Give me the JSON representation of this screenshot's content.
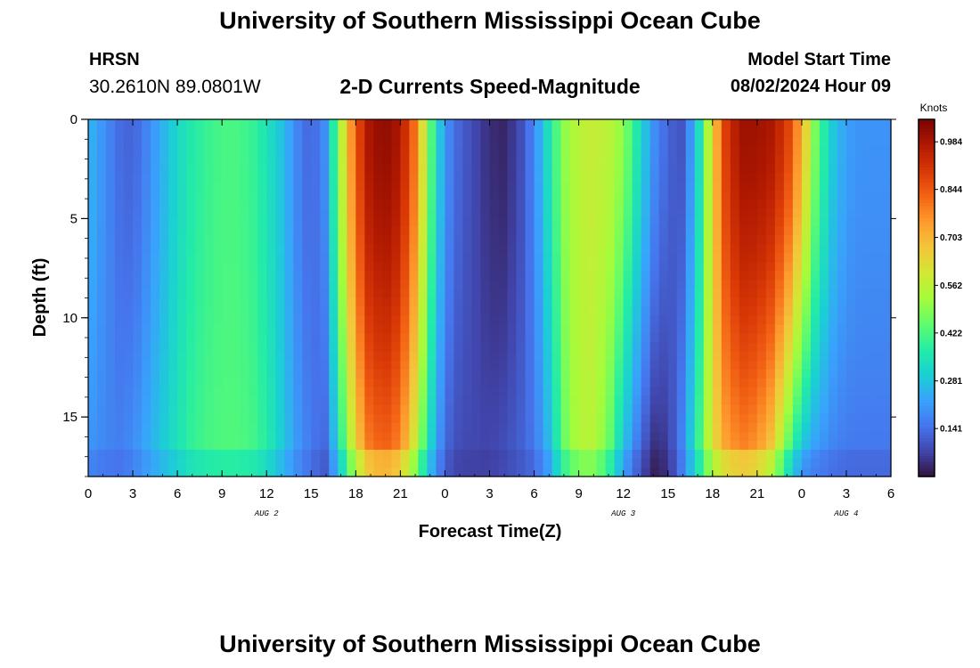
{
  "header": {
    "title": "University of Southern Mississippi Ocean Cube",
    "station": "HRSN",
    "coordinates": "30.2610N  89.0801W",
    "subtitle": "2-D Currents Speed-Magnitude",
    "model_start_label": "Model Start Time",
    "model_start_value": "08/02/2024 Hour 09"
  },
  "footer": {
    "title": "University of Southern Mississippi Ocean Cube"
  },
  "chart_data": {
    "type": "heatmap",
    "title": "2-D Currents Speed-Magnitude",
    "xlabel": "Forecast Time(Z)",
    "ylabel": "Depth (ft)",
    "x_units": "forecast hour offset from 00Z Aug 2",
    "x_range": [
      0,
      54
    ],
    "x_tick_values": [
      0,
      3,
      6,
      9,
      12,
      15,
      18,
      21,
      24,
      27,
      30,
      33,
      36,
      39,
      42,
      45,
      48,
      51,
      54
    ],
    "x_tick_labels": [
      "0",
      "3",
      "6",
      "9",
      "12",
      "15",
      "18",
      "21",
      "0",
      "3",
      "6",
      "9",
      "12",
      "15",
      "18",
      "21",
      "0",
      "3",
      "6"
    ],
    "date_labels": [
      {
        "text": "AUG 2",
        "hour": 12
      },
      {
        "text": "AUG 3",
        "hour": 36
      },
      {
        "text": "AUG 4",
        "hour": 51
      }
    ],
    "y_range": [
      0,
      18
    ],
    "y_tick_values": [
      0,
      5,
      10,
      15
    ],
    "y_tick_labels": [
      "0",
      "5",
      "10",
      "15"
    ],
    "y_direction": "depth increases downward",
    "colorbar": {
      "label": "Knots",
      "min": 0.0,
      "max": 1.05,
      "tick_values": [
        0.141,
        0.281,
        0.422,
        0.562,
        0.703,
        0.844,
        0.984
      ],
      "tick_labels": [
        "0.141",
        "0.281",
        "0.422",
        "0.562",
        "0.703",
        "0.844",
        "0.984"
      ],
      "colormap": [
        "#30123b",
        "#4145ab",
        "#4675ed",
        "#39a2fc",
        "#1bcfd4",
        "#24eca6",
        "#61fc6c",
        "#a4fc3b",
        "#d1e834",
        "#f3c63a",
        "#fe9b2d",
        "#f36315",
        "#d93806",
        "#b11901",
        "#7a0402"
      ]
    },
    "speed_profile_knots": {
      "hours": [
        0,
        1,
        2,
        3,
        4,
        5,
        6,
        7,
        8,
        9,
        10,
        11,
        12,
        13,
        14,
        15,
        16,
        17,
        18,
        19,
        20,
        21,
        22,
        23,
        24,
        25,
        26,
        27,
        28,
        29,
        30,
        31,
        32,
        33,
        34,
        35,
        36,
        37,
        38,
        39,
        40,
        41,
        42,
        43,
        44,
        45,
        46,
        47,
        48,
        49,
        50,
        51,
        52,
        53,
        54
      ],
      "surface": [
        0.26,
        0.2,
        0.14,
        0.12,
        0.18,
        0.25,
        0.32,
        0.37,
        0.4,
        0.42,
        0.42,
        0.4,
        0.35,
        0.28,
        0.18,
        0.12,
        0.2,
        0.55,
        0.85,
        1.0,
        1.02,
        0.98,
        0.8,
        0.45,
        0.2,
        0.12,
        0.08,
        0.04,
        0.03,
        0.08,
        0.18,
        0.35,
        0.5,
        0.56,
        0.58,
        0.56,
        0.5,
        0.35,
        0.2,
        0.12,
        0.1,
        0.3,
        0.65,
        0.92,
        1.0,
        1.0,
        0.98,
        0.9,
        0.72,
        0.45,
        0.3,
        0.22,
        0.2,
        0.2,
        0.2
      ],
      "bottom": [
        0.2,
        0.18,
        0.17,
        0.2,
        0.25,
        0.3,
        0.35,
        0.4,
        0.42,
        0.43,
        0.43,
        0.42,
        0.38,
        0.3,
        0.22,
        0.16,
        0.12,
        0.35,
        0.62,
        0.78,
        0.8,
        0.75,
        0.55,
        0.3,
        0.12,
        0.08,
        0.08,
        0.08,
        0.1,
        0.12,
        0.15,
        0.25,
        0.45,
        0.55,
        0.55,
        0.45,
        0.25,
        0.12,
        0.02,
        0.05,
        0.2,
        0.4,
        0.62,
        0.72,
        0.75,
        0.72,
        0.62,
        0.4,
        0.22,
        0.18,
        0.16,
        0.15,
        0.15,
        0.15,
        0.15
      ]
    }
  }
}
